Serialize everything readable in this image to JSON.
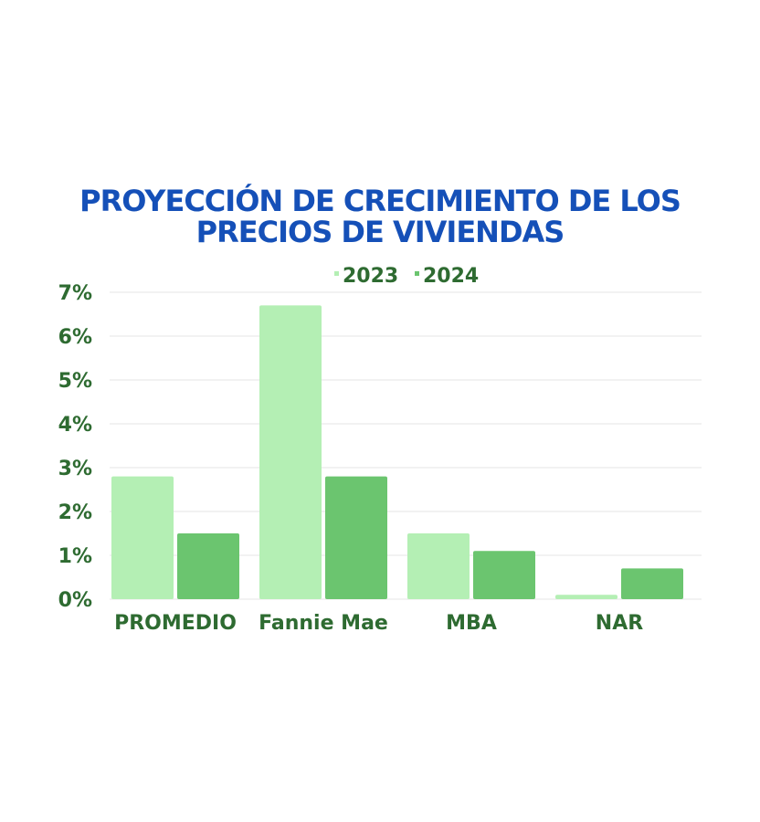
{
  "chart_data": {
    "type": "bar",
    "title_lines": [
      "PROYECCIÓN DE CRECIMIENTO DE LOS",
      "PRECIOS DE VIVIENDAS"
    ],
    "categories": [
      "PROMEDIO",
      "Fannie Mae",
      "MBA",
      "NAR"
    ],
    "series": [
      {
        "name": "2023",
        "values": [
          2.8,
          6.7,
          1.5,
          0.1
        ],
        "color": "#b4efb4"
      },
      {
        "name": "2024",
        "values": [
          1.5,
          2.8,
          1.1,
          0.7
        ],
        "color": "#6bc56f"
      }
    ],
    "y_ticks": [
      "0%",
      "1%",
      "2%",
      "3%",
      "4%",
      "5%",
      "6%",
      "7%"
    ],
    "ylim": [
      0,
      7
    ],
    "grid": true,
    "legend_position": "top-center",
    "colors": {
      "title": "#1550b8",
      "labels": "#2e6b31",
      "grid": "#e6e6e6"
    }
  }
}
